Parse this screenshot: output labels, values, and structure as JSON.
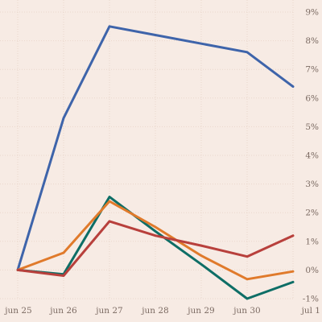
{
  "chart_data": {
    "type": "line",
    "x": [
      "jun 25",
      "jun 26",
      "jun 27",
      "jun 28",
      "jun 29",
      "jun 30",
      "jul 1"
    ],
    "y_ticks": [
      "-1%",
      "0%",
      "1%",
      "2%",
      "3%",
      "4%",
      "5%",
      "6%",
      "7%",
      "8%",
      "9%"
    ],
    "y_axis_position": "right",
    "ylim": [
      -1,
      9
    ],
    "grid": true,
    "series": [
      {
        "color": "#3e64aa",
        "values": [
          0,
          5.3,
          8.5,
          8.2,
          7.9,
          7.6,
          6.4
        ]
      },
      {
        "color": "#0e6e66",
        "values": [
          0,
          -0.15,
          2.55,
          1.35,
          0.2,
          -1.0,
          -0.42
        ]
      },
      {
        "color": "#e07a2b",
        "values": [
          0,
          0.6,
          2.4,
          1.5,
          0.5,
          -0.32,
          -0.05
        ]
      },
      {
        "color": "#b8403c",
        "values": [
          0,
          -0.2,
          1.7,
          1.2,
          0.85,
          0.47,
          1.2
        ]
      }
    ]
  }
}
